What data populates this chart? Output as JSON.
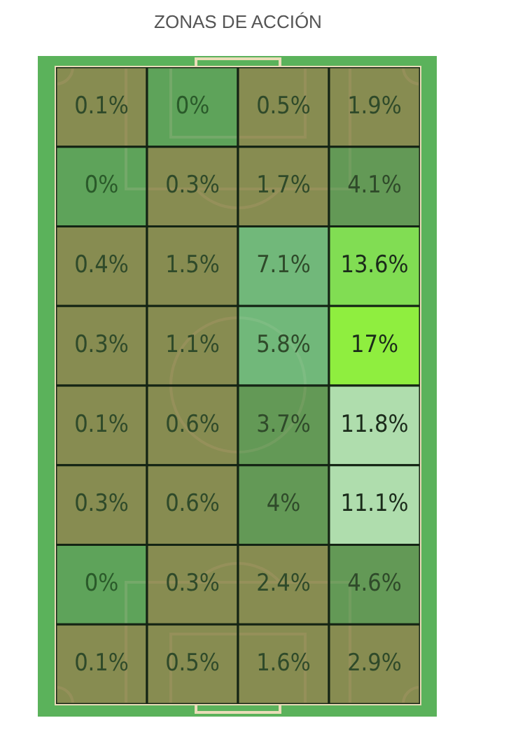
{
  "chart_data": {
    "type": "heatmap",
    "title": "ZONAS DE ACCIÓN",
    "categories": [
      null,
      null,
      null,
      null
    ],
    "y_categories": [
      null,
      null,
      null,
      null,
      null,
      null,
      null,
      null
    ],
    "cells": [
      [
        0.1,
        0,
        0.5,
        1.9
      ],
      [
        0,
        0.3,
        1.7,
        4.1
      ],
      [
        0.4,
        1.5,
        7.1,
        13.6
      ],
      [
        0.3,
        1.1,
        5.8,
        17
      ],
      [
        0.1,
        0.6,
        3.7,
        11.8
      ],
      [
        0.3,
        0.6,
        4,
        11.1
      ],
      [
        0,
        0.3,
        2.4,
        4.6
      ],
      [
        0.1,
        0.5,
        1.6,
        2.9
      ]
    ],
    "cell_labels": [
      [
        "0.1%",
        "0%",
        "0.5%",
        "1.9%"
      ],
      [
        "0%",
        "0.3%",
        "1.7%",
        "4.1%"
      ],
      [
        "0.4%",
        "1.5%",
        "7.1%",
        "13.6%"
      ],
      [
        "0.3%",
        "1.1%",
        "5.8%",
        "17%"
      ],
      [
        "0.1%",
        "0.6%",
        "3.7%",
        "11.8%"
      ],
      [
        "0.3%",
        "0.6%",
        "4%",
        "11.1%"
      ],
      [
        "0%",
        "0.3%",
        "2.4%",
        "4.6%"
      ],
      [
        "0.1%",
        "0.5%",
        "1.6%",
        "2.9%"
      ]
    ],
    "tick_labels": false
  }
}
